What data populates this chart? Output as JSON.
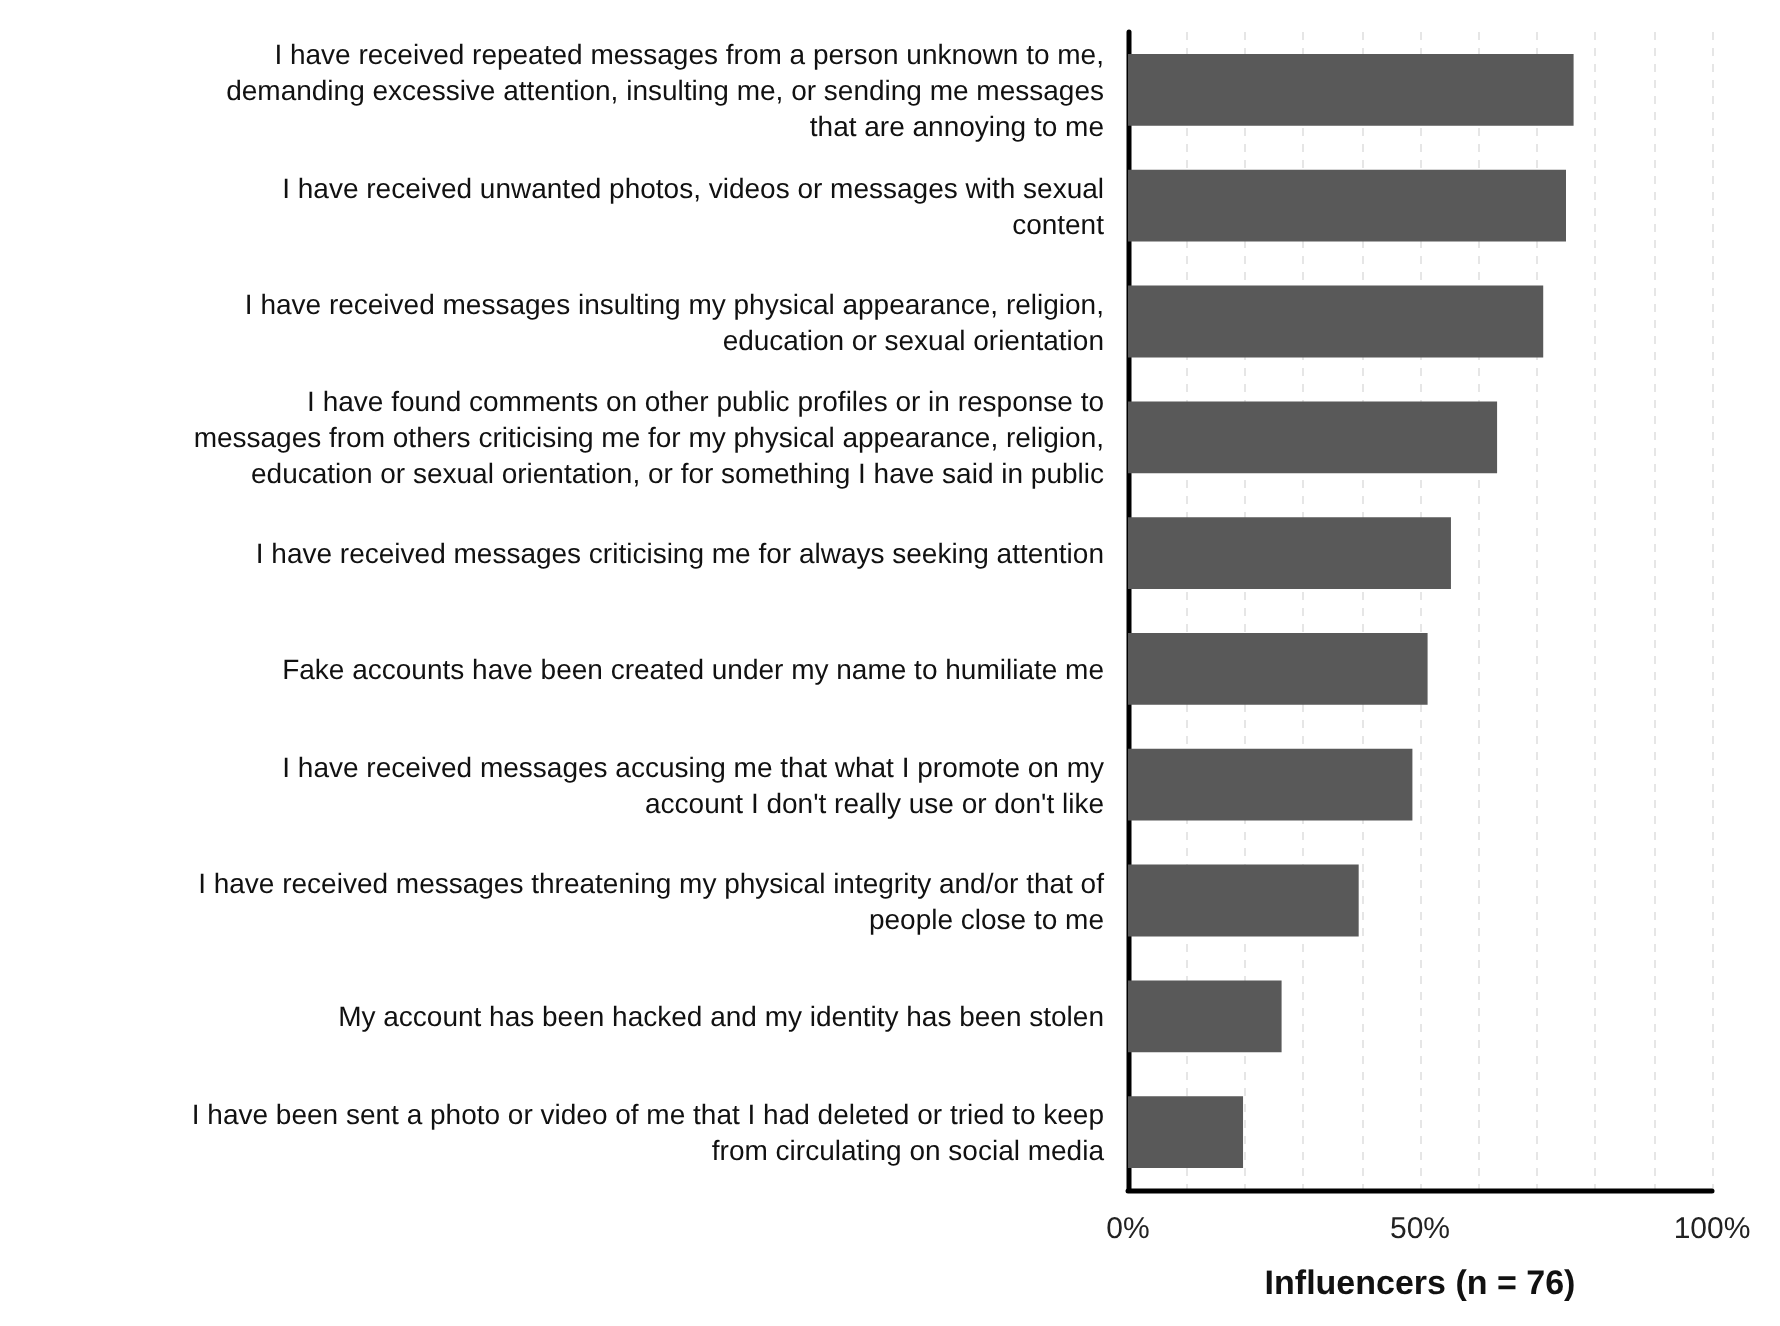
{
  "chart_data": {
    "type": "bar",
    "orientation": "horizontal",
    "categories": [
      "I have received repeated messages from a person unknown to me,\ndemanding excessive attention, insulting me, or sending me messages\nthat are annoying to me",
      "I have received unwanted photos, videos or messages with sexual\ncontent",
      "I have received messages insulting my physical appearance, religion,\neducation or sexual orientation",
      "I have found comments on other public profiles or in response to\nmessages from others criticising me for my physical appearance, religion,\neducation or sexual orientation, or for something I have said in public",
      "I have received messages criticising me for always seeking attention",
      "Fake accounts have been created under my name to humiliate me",
      "I have received messages accusing me that what I promote on my\naccount I don't really use or don't like",
      "I have received messages threatening my physical integrity and/or that of\npeople close to me",
      "My account has been hacked and my identity has been stolen",
      "I have been sent a photo or video of me that I had deleted or tried to keep\nfrom circulating on social media"
    ],
    "values": [
      76.3,
      75,
      71.1,
      63.2,
      55.3,
      51.3,
      48.7,
      39.5,
      26.3,
      19.7
    ],
    "color": "#595959",
    "xlabel": "Influencers (n = 76)",
    "xlim": [
      0,
      100
    ],
    "xticks": [
      {
        "value": 0,
        "label": "0%"
      },
      {
        "value": 10,
        "label": null
      },
      {
        "value": 20,
        "label": null
      },
      {
        "value": 30,
        "label": null
      },
      {
        "value": 40,
        "label": null
      },
      {
        "value": 50,
        "label": "50%"
      },
      {
        "value": 60,
        "label": null
      },
      {
        "value": 70,
        "label": null
      },
      {
        "value": 80,
        "label": null
      },
      {
        "value": 90,
        "label": null
      },
      {
        "value": 100,
        "label": "100%"
      }
    ],
    "grid": "x"
  }
}
